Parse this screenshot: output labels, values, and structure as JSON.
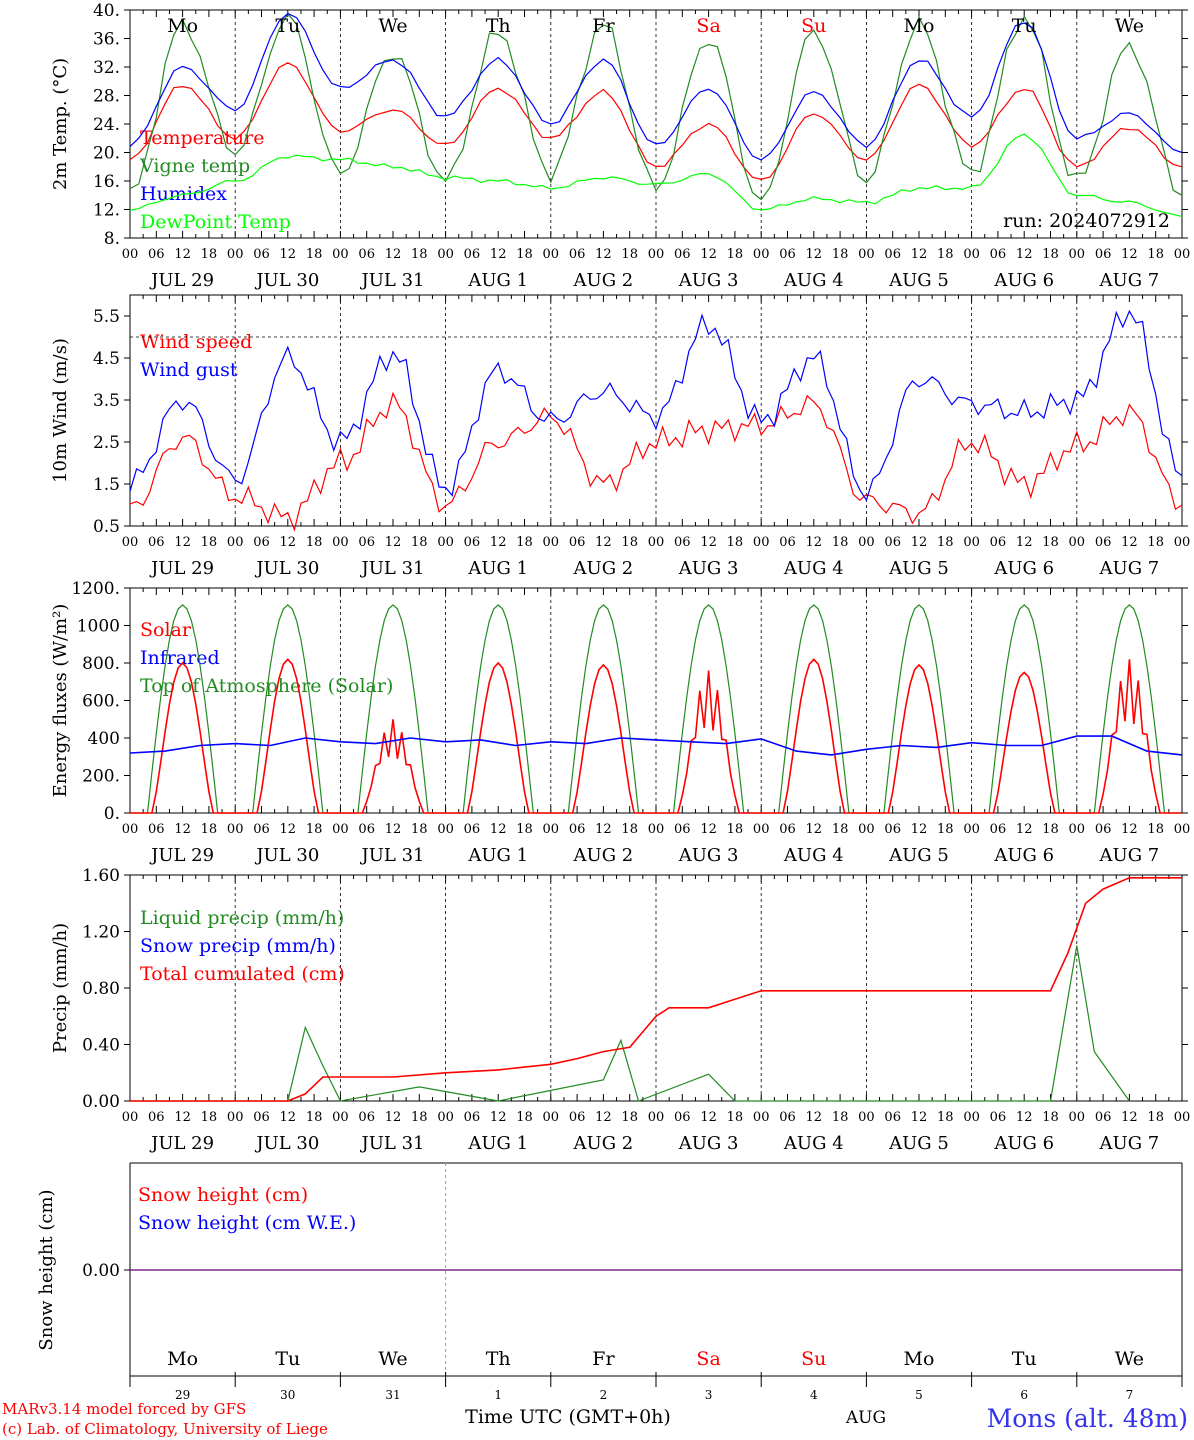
{
  "chart_data": [
    {
      "type": "line",
      "ylabel": "2m Temp. (°C)",
      "ylim": [
        8,
        40
      ],
      "yticks": [
        "8.",
        "12.",
        "16.",
        "20.",
        "24.",
        "28.",
        "32.",
        "36.",
        "40."
      ],
      "run_label": "run: 2024072912",
      "day_labels": [
        "Mo",
        "Tu",
        "We",
        "Th",
        "Fr",
        "Sa",
        "Su",
        "Mo",
        "Tu",
        "We"
      ],
      "date_labels": [
        "JUL 29",
        "JUL 30",
        "JUL 31",
        "AUG  1",
        "AUG  2",
        "AUG  3",
        "AUG  4",
        "AUG  5",
        "AUG  6",
        "AUG  7"
      ],
      "hour_labels": [
        "00",
        "06",
        "12",
        "18"
      ],
      "x_hours": [
        0,
        12,
        24,
        36,
        48,
        60,
        72,
        84,
        96,
        108,
        120,
        132,
        144,
        156,
        168,
        180,
        192,
        204,
        216,
        228,
        240
      ],
      "series": [
        {
          "name": "Temperature",
          "color": "#ff0000",
          "values": [
            19,
            29.5,
            22,
            32.5,
            23,
            26,
            21,
            29,
            22,
            28.5,
            18,
            24,
            16,
            25.5,
            19,
            29.5,
            21,
            29,
            18,
            23.5,
            18
          ]
        },
        {
          "name": "Vigne temp",
          "color": "#228b22",
          "values": [
            14,
            38,
            20,
            39,
            17,
            34,
            16,
            37,
            17,
            38,
            15,
            36,
            13,
            37,
            16,
            38,
            17,
            39,
            16,
            35,
            14
          ]
        },
        {
          "name": "Humidex",
          "color": "#0000ff",
          "values": [
            21,
            32,
            26,
            39.5,
            29,
            33,
            25,
            33,
            24,
            33,
            21,
            29,
            19,
            28.5,
            21,
            33,
            25,
            38.5,
            22,
            25.5,
            20
          ]
        },
        {
          "name": "DewPoint Temp",
          "color": "#00ff00",
          "values": [
            12,
            14,
            16,
            19.5,
            19,
            18,
            16.5,
            16,
            15,
            16.5,
            15.5,
            17,
            12,
            13.5,
            13,
            15,
            15,
            22.5,
            14,
            13,
            11
          ]
        }
      ]
    },
    {
      "type": "line",
      "ylabel": "10m Wind (m/s)",
      "ylim": [
        0.5,
        6
      ],
      "yticks": [
        "0.5",
        "1.5",
        "2.5",
        "3.5",
        "4.5",
        "5.5"
      ],
      "date_labels": [
        "JUL 29",
        "JUL 30",
        "JUL 31",
        "AUG  1",
        "AUG  2",
        "AUG  3",
        "AUG  4",
        "AUG  5",
        "AUG  6",
        "AUG  7"
      ],
      "hour_labels": [
        "00",
        "06",
        "12",
        "18"
      ],
      "reference_line": 5,
      "x_hours": [
        0,
        12,
        24,
        36,
        48,
        60,
        72,
        84,
        96,
        108,
        120,
        132,
        144,
        156,
        168,
        180,
        192,
        204,
        216,
        228,
        240
      ],
      "series": [
        {
          "name": "Wind speed",
          "color": "#ff0000",
          "values": [
            0.9,
            2.6,
            1.2,
            0.7,
            2.0,
            3.4,
            1.0,
            2.5,
            3.1,
            1.5,
            2.5,
            2.8,
            2.9,
            3.4,
            1.1,
            0.8,
            2.5,
            1.5,
            2.4,
            3.2,
            1.0
          ]
        },
        {
          "name": "Wind gust",
          "color": "#0000ff",
          "values": [
            1.5,
            3.5,
            1.6,
            4.5,
            2.5,
            4.6,
            1.4,
            4.2,
            3.0,
            3.7,
            3.1,
            5.3,
            3.0,
            4.5,
            1.3,
            4.0,
            3.4,
            3.2,
            3.5,
            5.6,
            1.7
          ]
        }
      ]
    },
    {
      "type": "line",
      "ylabel": "Energy fluxes (W/m²)",
      "ylim": [
        0,
        1200
      ],
      "yticks": [
        "0.",
        "200.",
        "400",
        "600.",
        "800.",
        "1000",
        "1200."
      ],
      "date_labels": [
        "JUL 29",
        "JUL 30",
        "JUL 31",
        "AUG  1",
        "AUG  2",
        "AUG  3",
        "AUG  4",
        "AUG  5",
        "AUG  6",
        "AUG  7"
      ],
      "hour_labels": [
        "00",
        "06",
        "12",
        "18"
      ],
      "solar_peaks": [
        800,
        820,
        500,
        800,
        790,
        760,
        820,
        790,
        750,
        820
      ],
      "toa_peak": 1110,
      "infrared_points": [
        320,
        330,
        360,
        370,
        360,
        400,
        380,
        370,
        400,
        380,
        390,
        360,
        380,
        370,
        400,
        390,
        380,
        370,
        395,
        330,
        310,
        340,
        360,
        350,
        375,
        360,
        360,
        410,
        410,
        330,
        310
      ],
      "series": [
        {
          "name": "Solar",
          "color": "#ff0000"
        },
        {
          "name": "Infrared",
          "color": "#0000ff"
        },
        {
          "name": "Top of Atmosphere (Solar)",
          "color": "#228b22"
        }
      ]
    },
    {
      "type": "line",
      "ylabel": "Precip (mm/h)",
      "ylim": [
        0,
        1.6
      ],
      "yticks": [
        "0.00",
        "0.40",
        "0.80",
        "1.20",
        "1.60"
      ],
      "date_labels": [
        "JUL 29",
        "JUL 30",
        "JUL 31",
        "AUG  1",
        "AUG  2",
        "AUG  3",
        "AUG  4",
        "AUG  5",
        "AUG  6",
        "AUG  7"
      ],
      "hour_labels": [
        "00",
        "06",
        "12",
        "18"
      ],
      "liquid_points": [
        [
          0,
          0
        ],
        [
          36,
          0
        ],
        [
          40,
          0.52
        ],
        [
          44,
          0.25
        ],
        [
          48,
          0
        ],
        [
          66,
          0.1
        ],
        [
          84,
          0
        ],
        [
          108,
          0.15
        ],
        [
          112,
          0.43
        ],
        [
          116,
          0
        ],
        [
          132,
          0.19
        ],
        [
          138,
          0
        ],
        [
          210,
          0
        ],
        [
          216,
          1.1
        ],
        [
          220,
          0.35
        ],
        [
          228,
          0
        ]
      ],
      "cumulated_points": [
        [
          0,
          0
        ],
        [
          36,
          0
        ],
        [
          40,
          0.05
        ],
        [
          44,
          0.17
        ],
        [
          60,
          0.17
        ],
        [
          72,
          0.2
        ],
        [
          84,
          0.22
        ],
        [
          96,
          0.26
        ],
        [
          102,
          0.3
        ],
        [
          108,
          0.35
        ],
        [
          114,
          0.38
        ],
        [
          120,
          0.6
        ],
        [
          123,
          0.66
        ],
        [
          132,
          0.66
        ],
        [
          138,
          0.72
        ],
        [
          144,
          0.78
        ],
        [
          210,
          0.78
        ],
        [
          214,
          1.05
        ],
        [
          218,
          1.4
        ],
        [
          222,
          1.5
        ],
        [
          228,
          1.58
        ],
        [
          240,
          1.58
        ]
      ],
      "series": [
        {
          "name": "Liquid precip (mm/h)",
          "color": "#228b22"
        },
        {
          "name": "Snow precip (mm/h)",
          "color": "#0000ff"
        },
        {
          "name": "Total cumulated (cm)",
          "color": "#ff0000"
        }
      ]
    },
    {
      "type": "line",
      "ylabel": "Snow height (cm)",
      "yticks": [
        "0.00"
      ],
      "day_labels": [
        "Mo",
        "Tu",
        "We",
        "Th",
        "Fr",
        "Sa",
        "Su",
        "Mo",
        "Tu",
        "We"
      ],
      "date_numbers": [
        "29",
        "30",
        "31",
        "1",
        "2",
        "3",
        "4",
        "5",
        "6",
        "7"
      ],
      "series": [
        {
          "name": "Snow height (cm)",
          "color": "#ff0000",
          "values": [
            0,
            0
          ]
        },
        {
          "name": "Snow height (cm W.E.)",
          "color": "#0000ff",
          "values": [
            0,
            0
          ]
        }
      ]
    }
  ],
  "weekend_day_color": "#ff0000",
  "footer": {
    "model": "MARv3.14 model forced by GFS",
    "credit": "(c) Lab. of Climatology, University of Liege",
    "axis_title": "Time UTC (GMT+0h)",
    "month": "AUG",
    "station": "Mons (alt. 48m)"
  }
}
